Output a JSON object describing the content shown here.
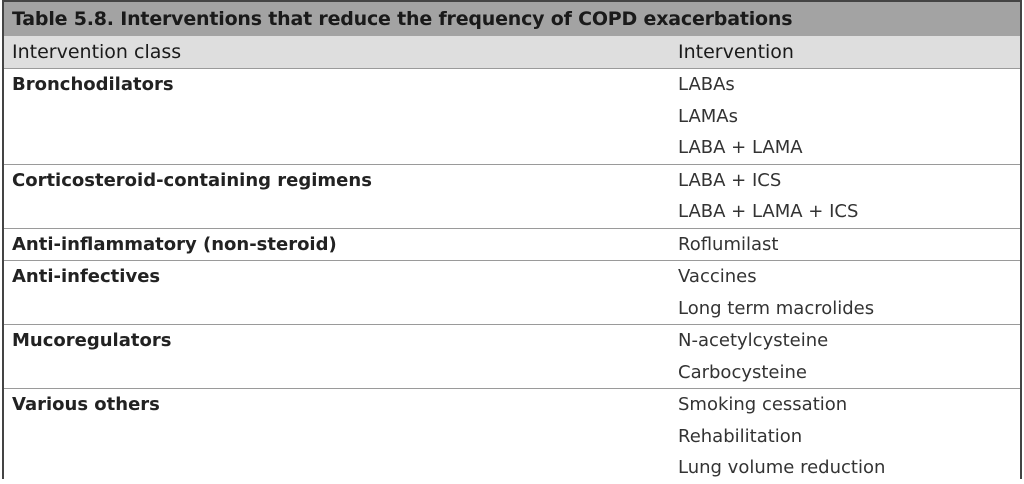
{
  "table": {
    "title": "Table 5.8. Interventions that reduce the frequency of COPD exacerbations",
    "header": [
      "Intervention class",
      "Intervention"
    ],
    "rows": [
      {
        "class": "Bronchodilators",
        "interventions": [
          "LABAs",
          "LAMAs",
          "LABA + LAMA"
        ]
      },
      {
        "class": "Corticosteroid-containing regimens",
        "interventions": [
          "LABA + ICS",
          "LABA + LAMA + ICS"
        ]
      },
      {
        "class": "Anti-inflammatory (non-steroid)",
        "interventions": [
          "Roflumilast"
        ]
      },
      {
        "class": "Anti-infectives",
        "interventions": [
          "Vaccines",
          "Long term macrolides"
        ]
      },
      {
        "class": "Mucoregulators",
        "interventions": [
          "N-acetylcysteine",
          "Carbocysteine"
        ]
      },
      {
        "class": "Various others",
        "interventions": [
          "Smoking cessation",
          "Rehabilitation",
          "Lung volume reduction"
        ]
      }
    ]
  }
}
